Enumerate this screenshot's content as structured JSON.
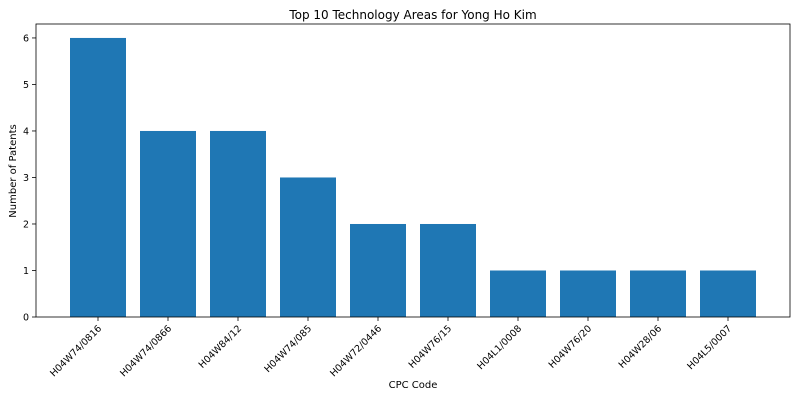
{
  "chart_data": {
    "type": "bar",
    "title": "Top 10 Technology Areas for Yong Ho Kim",
    "xlabel": "CPC Code",
    "ylabel": "Number of Patents",
    "categories": [
      "H04W74/0816",
      "H04W74/0866",
      "H04W84/12",
      "H04W74/085",
      "H04W72/0446",
      "H04W76/15",
      "H04L1/0008",
      "H04W76/20",
      "H04W28/06",
      "H04L5/0007"
    ],
    "values": [
      6,
      4,
      4,
      3,
      2,
      2,
      1,
      1,
      1,
      1
    ],
    "yticks": [
      0,
      1,
      2,
      3,
      4,
      5,
      6
    ],
    "ylim": [
      0,
      6.3
    ],
    "grid": false,
    "bar_color": "#1f77b4"
  }
}
